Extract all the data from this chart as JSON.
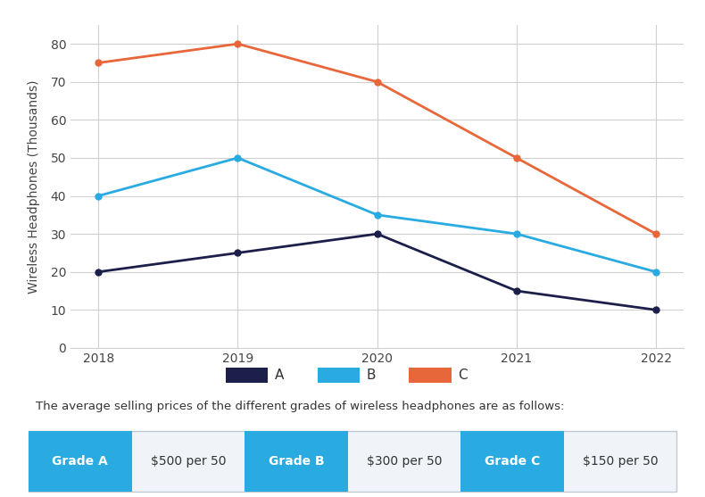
{
  "years": [
    2018,
    2019,
    2020,
    2021,
    2022
  ],
  "series_A": [
    20,
    25,
    30,
    15,
    10
  ],
  "series_B": [
    40,
    50,
    35,
    30,
    20
  ],
  "series_C": [
    75,
    80,
    70,
    50,
    30
  ],
  "color_A": "#1c1f4a",
  "color_B": "#29abe2",
  "color_C": "#e8673a",
  "ylabel": "Wireless Headphones (Thousands)",
  "ylim": [
    0,
    85
  ],
  "yticks": [
    0,
    10,
    20,
    30,
    40,
    50,
    60,
    70,
    80
  ],
  "background_color": "#ffffff",
  "grid_color": "#d0d0d0",
  "legend_labels": [
    "A",
    "B",
    "C"
  ],
  "annotation_text": "The average selling prices of the different grades of wireless headphones are as follows:",
  "grade_labels": [
    "Grade A",
    "Grade B",
    "Grade C"
  ],
  "grade_prices": [
    "$500 per 50",
    "$300 per 50",
    "$150 per 50"
  ],
  "grade_button_color": "#29abe2",
  "grade_button_text_color": "#ffffff",
  "grade_price_text_color": "#333333",
  "line_width": 2.0,
  "marker": "o",
  "marker_size": 5
}
